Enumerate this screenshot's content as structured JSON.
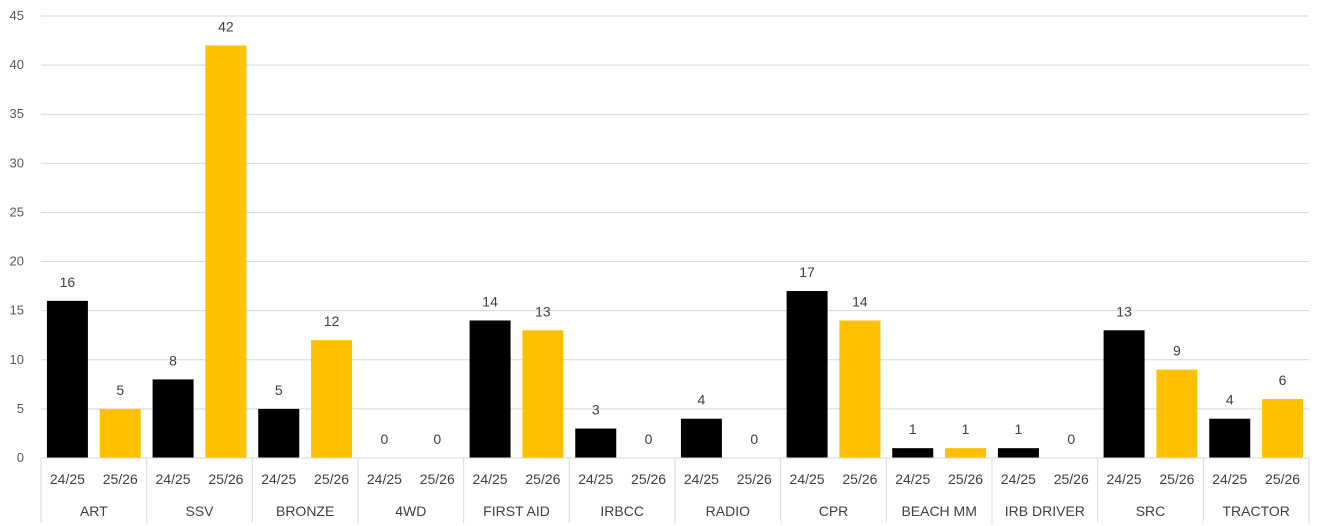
{
  "chart_data": {
    "type": "bar",
    "title": "",
    "xlabel": "",
    "ylabel": "",
    "ylim": [
      0,
      45
    ],
    "yticks": [
      0,
      5,
      10,
      15,
      20,
      25,
      30,
      35,
      40,
      45
    ],
    "grid": true,
    "legend": "none",
    "data_labels": true,
    "categories": [
      "ART",
      "SSV",
      "BRONZE",
      "4WD",
      "FIRST AID",
      "IRBCC",
      "RADIO",
      "CPR",
      "BEACH MM",
      "IRB DRIVER",
      "SRC",
      "TRACTOR"
    ],
    "subcategories": [
      "24/25",
      "25/26"
    ],
    "colors": [
      "#000000",
      "#FFC000"
    ],
    "series": [
      {
        "values": [
          16,
          8,
          5,
          0,
          14,
          3,
          4,
          17,
          1,
          1,
          13,
          4
        ]
      },
      {
        "values": [
          5,
          42,
          12,
          0,
          13,
          0,
          0,
          14,
          1,
          0,
          9,
          6
        ]
      }
    ]
  }
}
